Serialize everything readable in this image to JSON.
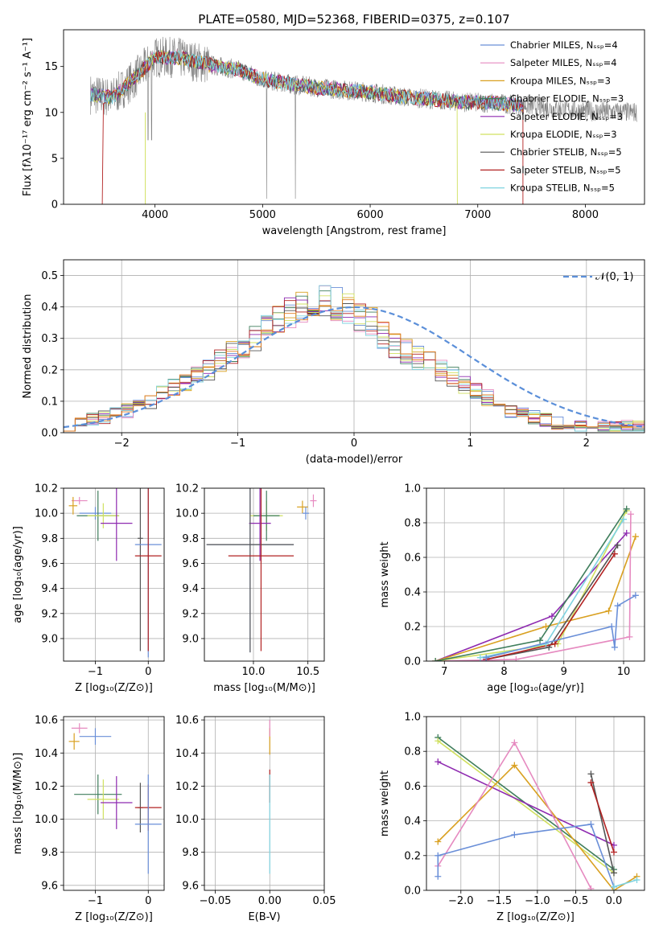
{
  "chart_data": [
    {
      "type": "line",
      "title": "PLATE=0580, MJD=52368, FIBERID=0375, z=0.107",
      "xlabel": "wavelength [Angstrom, rest frame]",
      "ylabel": "Flux [fλ10⁻¹⁷ erg cm⁻² s⁻¹ A⁻¹]",
      "xlim": [
        3150,
        8550
      ],
      "ylim": [
        0,
        19
      ],
      "xticks": [
        4000,
        5000,
        6000,
        7000,
        8000
      ],
      "yticks": [
        0,
        5,
        10,
        15
      ],
      "grid": false,
      "legend_position": "top-right",
      "series": [
        {
          "name": "Chabrier MILES, N_SSP=4",
          "color": "#6a8fd8"
        },
        {
          "name": "Salpeter MILES, N_SSP=4",
          "color": "#e68ac0"
        },
        {
          "name": "Kroupa MILES, N_SSP=3",
          "color": "#d9a020"
        },
        {
          "name": "Chabrier ELODIE, N_SSP=3",
          "color": "#3f7e5c"
        },
        {
          "name": "Salpeter ELODIE, N_SSP=3",
          "color": "#8e2ab0"
        },
        {
          "name": "Kroupa ELODIE, N_SSP=3",
          "color": "#d0e060"
        },
        {
          "name": "Chabrier STELIB, N_SSP=5",
          "color": "#555555"
        },
        {
          "name": "Salpeter STELIB, N_SSP=5",
          "color": "#b22222"
        },
        {
          "name": "Kroupa STELIB, N_SSP=5",
          "color": "#7fd3e0"
        }
      ],
      "data_color": "#808080",
      "model_curve": {
        "x": [
          3400,
          3600,
          3800,
          4000,
          4200,
          4500,
          4800,
          5000,
          5300,
          5600,
          6000,
          6300,
          6600,
          6900,
          7200,
          7500,
          7800,
          8100,
          8500
        ],
        "y": [
          12.0,
          11.6,
          13.6,
          16.0,
          16.0,
          15.2,
          14.6,
          13.6,
          13.0,
          12.6,
          12.2,
          11.7,
          11.4,
          11.1,
          11.0,
          10.7,
          10.3,
          10.1,
          10.0
        ]
      }
    },
    {
      "type": "bar",
      "xlabel": "(data-model)/error",
      "ylabel": "Normed distribution",
      "xlim": [
        -2.5,
        2.5
      ],
      "ylim": [
        0,
        0.55
      ],
      "xticks": [
        -2,
        -1,
        0,
        1,
        2
      ],
      "yticks": [
        0.0,
        0.1,
        0.2,
        0.3,
        0.4,
        0.5
      ],
      "grid": true,
      "legend": "𝒩(0, 1)",
      "legend_position": "top-right",
      "bin_width": 0.1,
      "base_distribution": [
        0.02,
        0.03,
        0.04,
        0.05,
        0.06,
        0.07,
        0.09,
        0.1,
        0.12,
        0.14,
        0.16,
        0.18,
        0.2,
        0.23,
        0.26,
        0.28,
        0.3,
        0.33,
        0.36,
        0.38,
        0.4,
        0.41,
        0.42,
        0.41,
        0.39,
        0.37,
        0.35,
        0.31,
        0.28,
        0.26,
        0.24,
        0.22,
        0.2,
        0.18,
        0.15,
        0.13,
        0.11,
        0.09,
        0.07,
        0.06,
        0.05,
        0.04,
        0.03,
        0.03,
        0.02,
        0.02,
        0.02,
        0.02,
        0.02,
        0.02
      ],
      "normal_curve": {
        "mu": 0,
        "sigma": 1,
        "color": "#5b8fd9"
      }
    },
    {
      "type": "scatter",
      "xlabel": "Z [log₁₀(Z/Z⊙)]",
      "ylabel": "age  [log₁₀(age/yr)]",
      "xlim": [
        -1.6,
        0.3
      ],
      "ylim": [
        8.82,
        10.2
      ],
      "xticks": [
        -1,
        0
      ],
      "yticks": [
        9.0,
        9.2,
        9.4,
        9.6,
        9.8,
        10.0,
        10.2
      ],
      "grid": true,
      "points": [
        {
          "x": -1.3,
          "y": 10.1,
          "xerr": 0.15,
          "yerr": 0.03,
          "color": "#e68ac0"
        },
        {
          "x": -1.42,
          "y": 10.06,
          "xerr": 0.08,
          "yerr": 0.07,
          "color": "#d9a020"
        },
        {
          "x": -1.0,
          "y": 10.0,
          "xerr": 0.3,
          "yerr": 0.05,
          "color": "#6a8fd8"
        },
        {
          "x": -0.95,
          "y": 9.98,
          "xerr": 0.4,
          "yerr": 0.2,
          "color": "#3f7e5c"
        },
        {
          "x": -0.85,
          "y": 9.98,
          "xerr": 0.3,
          "yerr": 0.1,
          "color": "#d0e060"
        },
        {
          "x": -0.6,
          "y": 9.92,
          "xerr": 0.3,
          "yerr": 0.3,
          "color": "#8e2ab0"
        },
        {
          "x": -0.15,
          "y": 9.8,
          "xerr": 0.05,
          "yerr": 0.9,
          "color": "#555555"
        },
        {
          "x": 0.0,
          "y": 9.75,
          "xerr": 0.25,
          "yerr": 0.9,
          "color": "#6a8fd8"
        },
        {
          "x": 0.0,
          "y": 9.66,
          "xerr": 0.25,
          "yerr": 0.76,
          "color": "#b22222"
        }
      ]
    },
    {
      "type": "scatter",
      "xlabel": "mass [log₁₀(M/M⊙)]",
      "xlim": [
        9.55,
        10.65
      ],
      "ylim": [
        8.82,
        10.2
      ],
      "xticks": [
        10.0,
        10.5
      ],
      "yticks": [
        9.0,
        9.2,
        9.4,
        9.6,
        9.8,
        10.0,
        10.2
      ],
      "grid": true,
      "points": [
        {
          "x": 10.55,
          "y": 10.1,
          "xerr": 0.03,
          "yerr": 0.05,
          "color": "#e68ac0"
        },
        {
          "x": 10.45,
          "y": 10.05,
          "xerr": 0.05,
          "yerr": 0.05,
          "color": "#d9a020"
        },
        {
          "x": 10.48,
          "y": 10.0,
          "xerr": 0.03,
          "yerr": 0.05,
          "color": "#6a8fd8"
        },
        {
          "x": 10.12,
          "y": 9.98,
          "xerr": 0.15,
          "yerr": 0.12,
          "color": "#d0e060"
        },
        {
          "x": 10.12,
          "y": 9.98,
          "xerr": 0.12,
          "yerr": 0.2,
          "color": "#3f7e5c"
        },
        {
          "x": 10.06,
          "y": 9.92,
          "xerr": 0.1,
          "yerr": 0.3,
          "color": "#8e2ab0"
        },
        {
          "x": 9.97,
          "y": 9.75,
          "xerr": 0.4,
          "yerr": 0.86,
          "color": "#6a8fd8"
        },
        {
          "x": 9.97,
          "y": 9.75,
          "xerr": 0.4,
          "yerr": 0.86,
          "color": "#555555"
        },
        {
          "x": 10.07,
          "y": 9.66,
          "xerr": 0.3,
          "yerr": 0.76,
          "color": "#b22222"
        }
      ]
    },
    {
      "type": "line",
      "xlabel": "age  [log₁₀(age/yr)]",
      "ylabel": "mass weight",
      "xlim": [
        6.7,
        10.35
      ],
      "ylim": [
        0,
        1.0
      ],
      "xticks": [
        7,
        8,
        9,
        10
      ],
      "yticks": [
        0.0,
        0.2,
        0.4,
        0.6,
        0.8,
        1.0
      ],
      "grid": true,
      "series": [
        {
          "color": "#8e2ab0",
          "x": [
            6.85,
            8.8,
            10.05
          ],
          "y": [
            0.0,
            0.26,
            0.74
          ]
        },
        {
          "color": "#d9a020",
          "x": [
            6.85,
            8.7,
            9.75,
            10.2
          ],
          "y": [
            0.0,
            0.2,
            0.29,
            0.72
          ]
        },
        {
          "color": "#e68ac0",
          "x": [
            6.85,
            8.2,
            10.1,
            10.12
          ],
          "y": [
            0.0,
            0.01,
            0.14,
            0.85
          ]
        },
        {
          "color": "#d0e060",
          "x": [
            6.85,
            8.9,
            10.05
          ],
          "y": [
            0.0,
            0.1,
            0.87
          ]
        },
        {
          "color": "#3f7e5c",
          "x": [
            6.85,
            8.6,
            10.05
          ],
          "y": [
            0.0,
            0.12,
            0.88
          ]
        },
        {
          "color": "#555555",
          "x": [
            7.7,
            8.75,
            9.9
          ],
          "y": [
            0.01,
            0.08,
            0.67
          ]
        },
        {
          "color": "#b22222",
          "x": [
            7.7,
            8.85,
            9.85
          ],
          "y": [
            0.01,
            0.1,
            0.62
          ]
        },
        {
          "color": "#7fd3e0",
          "x": [
            7.6,
            8.7,
            10.0
          ],
          "y": [
            0.02,
            0.1,
            0.82
          ]
        },
        {
          "color": "#6a8fd8",
          "x": [
            7.7,
            9.8,
            9.85,
            9.9,
            10.2
          ],
          "y": [
            0.02,
            0.2,
            0.08,
            0.32,
            0.38
          ]
        }
      ]
    },
    {
      "type": "scatter",
      "xlabel": "Z [log₁₀(Z/Z⊙)]",
      "ylabel": "mass [log₁₀(M/M⊙)]",
      "xlim": [
        -1.6,
        0.3
      ],
      "ylim": [
        9.57,
        10.62
      ],
      "xticks": [
        -1,
        0
      ],
      "yticks": [
        9.6,
        9.8,
        10.0,
        10.2,
        10.4,
        10.6
      ],
      "grid": true,
      "points": [
        {
          "x": -1.3,
          "y": 10.55,
          "xerr": 0.15,
          "yerr": 0.03,
          "color": "#e68ac0"
        },
        {
          "x": -1.0,
          "y": 10.5,
          "xerr": 0.3,
          "yerr": 0.05,
          "color": "#6a8fd8"
        },
        {
          "x": -1.4,
          "y": 10.47,
          "xerr": 0.1,
          "yerr": 0.05,
          "color": "#d9a020"
        },
        {
          "x": -0.95,
          "y": 10.15,
          "xerr": 0.45,
          "yerr": 0.12,
          "color": "#3f7e5c"
        },
        {
          "x": -0.85,
          "y": 10.12,
          "xerr": 0.3,
          "yerr": 0.12,
          "color": "#d0e060"
        },
        {
          "x": -0.6,
          "y": 10.1,
          "xerr": 0.3,
          "yerr": 0.16,
          "color": "#8e2ab0"
        },
        {
          "x": -0.15,
          "y": 10.07,
          "xerr": 0.05,
          "yerr": 0.15,
          "color": "#555555"
        },
        {
          "x": 0.0,
          "y": 10.07,
          "xerr": 0.25,
          "yerr": 0.14,
          "color": "#b22222"
        },
        {
          "x": 0.0,
          "y": 9.97,
          "xerr": 0.25,
          "yerr": 0.3,
          "color": "#6a8fd8"
        }
      ]
    },
    {
      "type": "scatter",
      "xlabel": "E(B-V)",
      "xlim": [
        -0.06,
        0.05
      ],
      "ylim": [
        9.57,
        10.62
      ],
      "xticks": [
        -0.05,
        0.0,
        0.05
      ],
      "yticks": [
        9.6,
        9.8,
        10.0,
        10.2,
        10.4,
        10.6
      ],
      "grid": true,
      "points": [
        {
          "x": 0.0,
          "y": 10.47,
          "yerr": 0.08,
          "color": "#d9a020"
        },
        {
          "x": 0.0,
          "y": 10.55,
          "yerr": 0.05,
          "color": "#e68ac0"
        },
        {
          "x": 0.0,
          "y": 10.2,
          "yerr": 0.1,
          "color": "#b22222"
        },
        {
          "x": 0.0,
          "y": 9.97,
          "yerr": 0.3,
          "color": "#7fd3e0"
        }
      ]
    },
    {
      "type": "line",
      "xlabel": "Z [log₁₀(Z/Z⊙)]",
      "ylabel": "mass weight",
      "xlim": [
        -2.45,
        0.4
      ],
      "ylim": [
        0,
        1.0
      ],
      "xticks": [
        -2.0,
        -1.5,
        -1.0,
        -0.5,
        0.0
      ],
      "yticks": [
        0.0,
        0.2,
        0.4,
        0.6,
        0.8,
        1.0
      ],
      "grid": true,
      "series": [
        {
          "color": "#3f7e5c",
          "x": [
            -2.3,
            0.0
          ],
          "y": [
            0.88,
            0.12
          ]
        },
        {
          "color": "#d0e060",
          "x": [
            -2.3,
            0.0
          ],
          "y": [
            0.86,
            0.1
          ]
        },
        {
          "color": "#8e2ab0",
          "x": [
            -2.3,
            0.0
          ],
          "y": [
            0.74,
            0.26
          ]
        },
        {
          "color": "#d9a020",
          "x": [
            -2.3,
            -1.3,
            0.0,
            0.3
          ],
          "y": [
            0.28,
            0.72,
            0.0,
            0.08
          ]
        },
        {
          "color": "#e68ac0",
          "x": [
            -2.3,
            -1.3,
            -0.3
          ],
          "y": [
            0.14,
            0.85,
            0.01
          ]
        },
        {
          "color": "#6a8fd8",
          "x": [
            -2.3,
            -2.3,
            -1.3,
            -0.3,
            0.0
          ],
          "y": [
            0.08,
            0.2,
            0.32,
            0.38,
            0.02
          ]
        },
        {
          "color": "#555555",
          "x": [
            -0.3,
            0.0
          ],
          "y": [
            0.67,
            0.1
          ]
        },
        {
          "color": "#b22222",
          "x": [
            -0.3,
            0.0
          ],
          "y": [
            0.62,
            0.22
          ]
        },
        {
          "color": "#7fd3e0",
          "x": [
            0.0,
            0.3
          ],
          "y": [
            0.02,
            0.06
          ]
        }
      ]
    }
  ]
}
